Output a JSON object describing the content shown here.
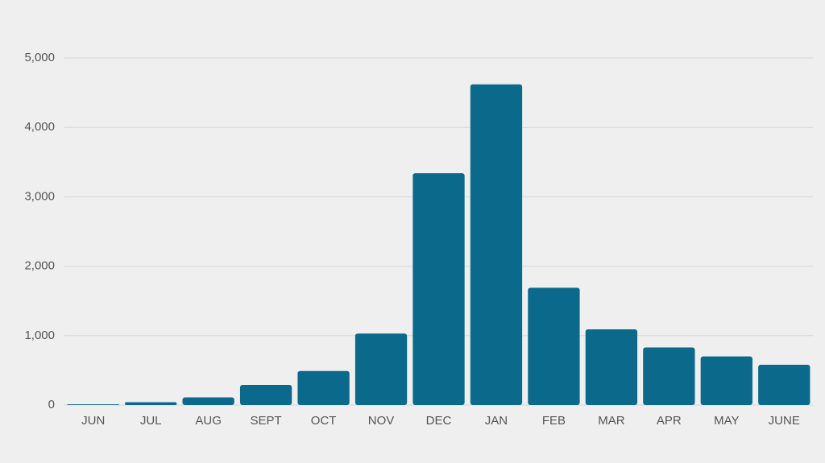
{
  "chart_data": {
    "type": "bar",
    "categories": [
      "JUN",
      "JUL",
      "AUG",
      "SEPT",
      "OCT",
      "NOV",
      "DEC",
      "JAN",
      "FEB",
      "MAR",
      "APR",
      "MAY",
      "JUNE"
    ],
    "values": [
      10,
      40,
      110,
      290,
      490,
      1030,
      3340,
      4620,
      1690,
      1090,
      830,
      700,
      580
    ],
    "color": "#0b6a8c",
    "ylim": [
      0,
      5000
    ],
    "yticks": [
      0,
      {
        "value": 1000,
        "label": "1,000"
      },
      {
        "value": 2000,
        "label": "2,000"
      },
      {
        "value": 3000,
        "label": "3,000"
      },
      {
        "value": 4000,
        "label": "4,000"
      },
      {
        "value": 5000,
        "label": "5,000"
      }
    ],
    "grid": true
  }
}
